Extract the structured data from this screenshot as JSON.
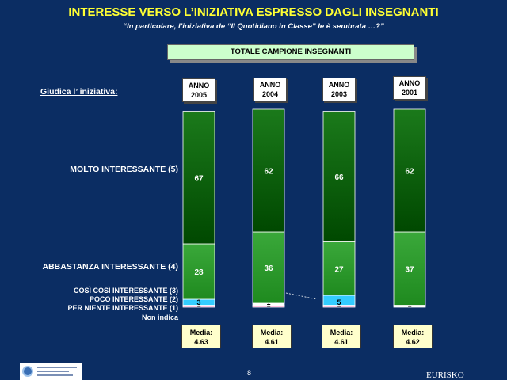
{
  "header": {
    "title": "INTERESSE VERSO L’INIZIATIVA ESPRESSO DAGLI INSEGNANTI",
    "subtitle": "“In particolare, l’iniziativa de “Il Quotidiano in Classe” le è sembrata …?”",
    "sample_label": "TOTALE CAMPIONE INSEGNANTI"
  },
  "question_label": "Giudica l’ iniziativa:",
  "row_labels": {
    "molto": "MOLTO INTERESSANTE (5)",
    "abbastanza": "ABBASTANZA INTERESSANTE (4)",
    "cosi": "COSÌ COSÌ INTERESSANTE (3)",
    "poco": "POCO INTERESSANTE (2)",
    "niente": "PER NIENTE INTERESSANTE (1)",
    "non_indica": "Non indica"
  },
  "years": [
    {
      "l1": "ANNO",
      "l2": "2005"
    },
    {
      "l1": "ANNO",
      "l2": "2004"
    },
    {
      "l1": "ANNO",
      "l2": "2003"
    },
    {
      "l1": "ANNO",
      "l2": "2001"
    }
  ],
  "medias": [
    {
      "label": "Media:",
      "value": "4.63"
    },
    {
      "label": "Media:",
      "value": "4.61"
    },
    {
      "label": "Media:",
      "value": "4.61"
    },
    {
      "label": "Media:",
      "value": "4.62"
    }
  ],
  "chart_data": {
    "type": "bar",
    "stacked": true,
    "categories": [
      "ANNO 2005",
      "ANNO 2004",
      "ANNO 2003",
      "ANNO 2001"
    ],
    "series": [
      {
        "name": "Non indica",
        "values": [
          0,
          0,
          0,
          0
        ],
        "color": "#ffffff",
        "labels": [
          "",
          "",
          "",
          ""
        ]
      },
      {
        "name": "PER NIENTE INTERESSANTE (1)",
        "values": [
          1,
          1,
          1,
          0
        ],
        "color": "#ff99cc",
        "labels": [
          "1",
          "1",
          "1",
          ""
        ]
      },
      {
        "name": "POCO INTERESSANTE (2)",
        "values": [
          0,
          1,
          0,
          1
        ],
        "color": "#ffffff",
        "labels": [
          "",
          "1",
          "",
          "1"
        ]
      },
      {
        "name": "COSÌ COSÌ INTERESSANTE (3)",
        "values": [
          3,
          0,
          5,
          0
        ],
        "color": "#33ccff",
        "labels": [
          "3",
          "",
          "5",
          ""
        ]
      },
      {
        "name": "ABBASTANZA INTERESSANTE (4)",
        "values": [
          28,
          36,
          27,
          37
        ],
        "color": "#2e9b2e",
        "labels": [
          "28",
          "36",
          "27",
          "37"
        ]
      },
      {
        "name": "MOLTO INTERESSANTE (5)",
        "values": [
          67,
          62,
          66,
          62
        ],
        "color": "#0a5c0a",
        "labels": [
          "67",
          "62",
          "66",
          "62"
        ]
      }
    ],
    "ylim": [
      0,
      100
    ]
  },
  "footer": {
    "page": "8",
    "brand": "EURISKO"
  }
}
